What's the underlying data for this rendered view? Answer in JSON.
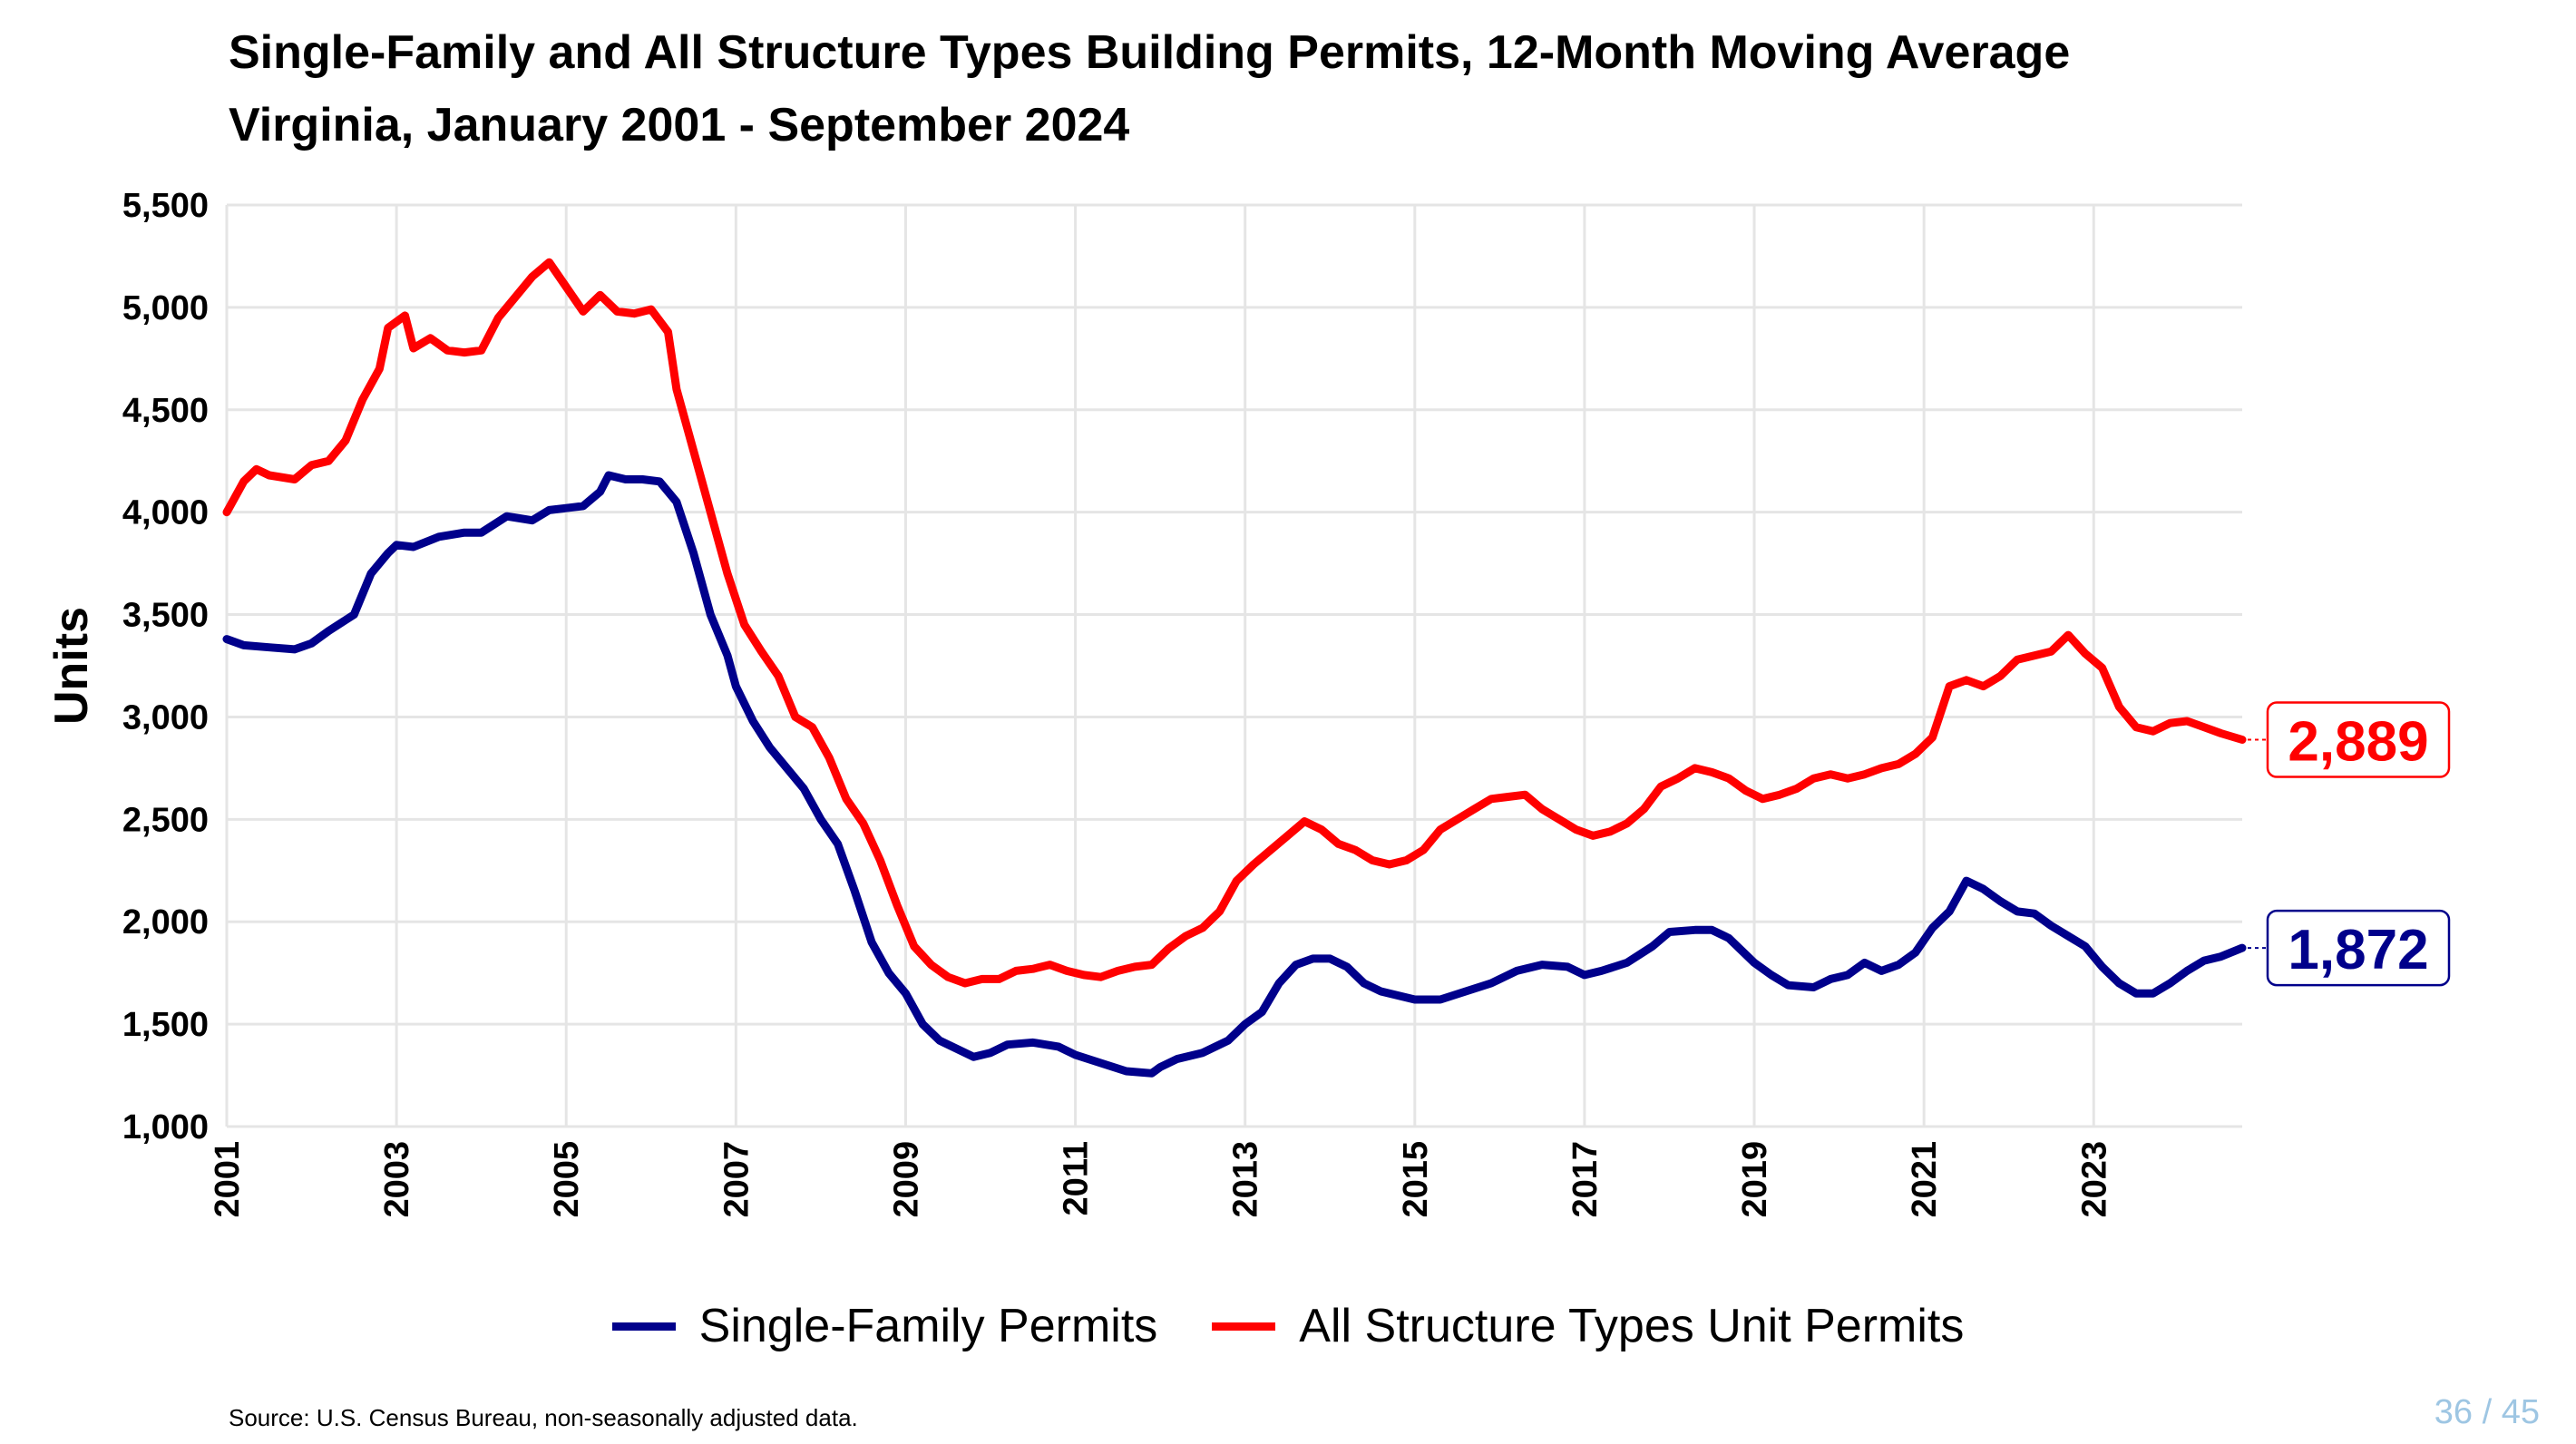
{
  "title_line1": "Single-Family and All Structure Types Building Permits, 12-Month Moving Average",
  "title_line2": "Virginia, January 2001 - September 2024",
  "source": "Source: U.S. Census Bureau, non-seasonally adjusted data.",
  "page": {
    "current": "36",
    "separator": "/",
    "total": "45"
  },
  "colors": {
    "single_family": "#00008b",
    "all_types": "#ff0000",
    "grid": "#e5e5e5"
  },
  "chart_data": {
    "type": "line",
    "title": "Single-Family and All Structure Types Building Permits, 12-Month Moving Average",
    "subtitle": "Virginia, January 2001 - September 2024",
    "xlabel": "",
    "ylabel": "Units",
    "xlim": [
      2001.0,
      2024.75
    ],
    "ylim": [
      1000,
      5500
    ],
    "x_ticks": [
      "2001",
      "2003",
      "2005",
      "2007",
      "2009",
      "2011",
      "2013",
      "2015",
      "2017",
      "2019",
      "2021",
      "2023"
    ],
    "y_ticks": [
      "1,000",
      "1,500",
      "2,000",
      "2,500",
      "3,000",
      "3,500",
      "4,000",
      "4,500",
      "5,000",
      "5,500"
    ],
    "grid": true,
    "legend_position": "bottom",
    "series": [
      {
        "name": "Single-Family Permits",
        "color": "#00008b",
        "end_label": "1,872",
        "points": [
          [
            2001.0,
            3380
          ],
          [
            2001.2,
            3350
          ],
          [
            2001.5,
            3340
          ],
          [
            2001.8,
            3330
          ],
          [
            2002.0,
            3360
          ],
          [
            2002.2,
            3420
          ],
          [
            2002.5,
            3500
          ],
          [
            2002.7,
            3700
          ],
          [
            2002.9,
            3800
          ],
          [
            2003.0,
            3840
          ],
          [
            2003.2,
            3830
          ],
          [
            2003.5,
            3880
          ],
          [
            2003.8,
            3900
          ],
          [
            2004.0,
            3900
          ],
          [
            2004.3,
            3980
          ],
          [
            2004.6,
            3960
          ],
          [
            2004.8,
            4010
          ],
          [
            2005.0,
            4020
          ],
          [
            2005.2,
            4030
          ],
          [
            2005.4,
            4100
          ],
          [
            2005.5,
            4180
          ],
          [
            2005.7,
            4160
          ],
          [
            2005.9,
            4160
          ],
          [
            2006.1,
            4150
          ],
          [
            2006.3,
            4050
          ],
          [
            2006.5,
            3800
          ],
          [
            2006.7,
            3500
          ],
          [
            2006.9,
            3300
          ],
          [
            2007.0,
            3150
          ],
          [
            2007.2,
            2980
          ],
          [
            2007.4,
            2850
          ],
          [
            2007.6,
            2750
          ],
          [
            2007.8,
            2650
          ],
          [
            2008.0,
            2500
          ],
          [
            2008.2,
            2380
          ],
          [
            2008.4,
            2150
          ],
          [
            2008.6,
            1900
          ],
          [
            2008.8,
            1750
          ],
          [
            2009.0,
            1650
          ],
          [
            2009.2,
            1500
          ],
          [
            2009.4,
            1420
          ],
          [
            2009.6,
            1380
          ],
          [
            2009.8,
            1340
          ],
          [
            2010.0,
            1360
          ],
          [
            2010.2,
            1400
          ],
          [
            2010.5,
            1410
          ],
          [
            2010.8,
            1390
          ],
          [
            2011.0,
            1350
          ],
          [
            2011.3,
            1310
          ],
          [
            2011.6,
            1270
          ],
          [
            2011.9,
            1260
          ],
          [
            2012.0,
            1290
          ],
          [
            2012.2,
            1330
          ],
          [
            2012.5,
            1360
          ],
          [
            2012.8,
            1420
          ],
          [
            2013.0,
            1500
          ],
          [
            2013.2,
            1560
          ],
          [
            2013.4,
            1700
          ],
          [
            2013.6,
            1790
          ],
          [
            2013.8,
            1820
          ],
          [
            2014.0,
            1820
          ],
          [
            2014.2,
            1780
          ],
          [
            2014.4,
            1700
          ],
          [
            2014.6,
            1660
          ],
          [
            2014.8,
            1640
          ],
          [
            2015.0,
            1620
          ],
          [
            2015.3,
            1620
          ],
          [
            2015.6,
            1660
          ],
          [
            2015.9,
            1700
          ],
          [
            2016.2,
            1760
          ],
          [
            2016.5,
            1790
          ],
          [
            2016.8,
            1780
          ],
          [
            2017.0,
            1740
          ],
          [
            2017.2,
            1760
          ],
          [
            2017.5,
            1800
          ],
          [
            2017.8,
            1880
          ],
          [
            2018.0,
            1950
          ],
          [
            2018.3,
            1960
          ],
          [
            2018.5,
            1960
          ],
          [
            2018.7,
            1920
          ],
          [
            2019.0,
            1800
          ],
          [
            2019.2,
            1740
          ],
          [
            2019.4,
            1690
          ],
          [
            2019.7,
            1680
          ],
          [
            2019.9,
            1720
          ],
          [
            2020.1,
            1740
          ],
          [
            2020.3,
            1800
          ],
          [
            2020.5,
            1760
          ],
          [
            2020.7,
            1790
          ],
          [
            2020.9,
            1850
          ],
          [
            2021.1,
            1970
          ],
          [
            2021.3,
            2050
          ],
          [
            2021.5,
            2200
          ],
          [
            2021.7,
            2160
          ],
          [
            2021.9,
            2100
          ],
          [
            2022.1,
            2050
          ],
          [
            2022.3,
            2040
          ],
          [
            2022.5,
            1980
          ],
          [
            2022.7,
            1930
          ],
          [
            2022.9,
            1880
          ],
          [
            2023.1,
            1780
          ],
          [
            2023.3,
            1700
          ],
          [
            2023.5,
            1650
          ],
          [
            2023.7,
            1650
          ],
          [
            2023.9,
            1700
          ],
          [
            2024.1,
            1760
          ],
          [
            2024.3,
            1810
          ],
          [
            2024.5,
            1830
          ],
          [
            2024.75,
            1872
          ]
        ]
      },
      {
        "name": "All Structure Types Unit Permits",
        "color": "#ff0000",
        "end_label": "2,889",
        "points": [
          [
            2001.0,
            4000
          ],
          [
            2001.2,
            4150
          ],
          [
            2001.35,
            4210
          ],
          [
            2001.5,
            4180
          ],
          [
            2001.8,
            4160
          ],
          [
            2002.0,
            4230
          ],
          [
            2002.2,
            4250
          ],
          [
            2002.4,
            4350
          ],
          [
            2002.6,
            4550
          ],
          [
            2002.8,
            4700
          ],
          [
            2002.9,
            4900
          ],
          [
            2003.1,
            4960
          ],
          [
            2003.2,
            4800
          ],
          [
            2003.4,
            4850
          ],
          [
            2003.6,
            4790
          ],
          [
            2003.8,
            4780
          ],
          [
            2004.0,
            4790
          ],
          [
            2004.2,
            4950
          ],
          [
            2004.4,
            5050
          ],
          [
            2004.6,
            5150
          ],
          [
            2004.8,
            5220
          ],
          [
            2005.0,
            5100
          ],
          [
            2005.2,
            4980
          ],
          [
            2005.4,
            5060
          ],
          [
            2005.6,
            4980
          ],
          [
            2005.8,
            4970
          ],
          [
            2006.0,
            4990
          ],
          [
            2006.2,
            4880
          ],
          [
            2006.3,
            4600
          ],
          [
            2006.5,
            4300
          ],
          [
            2006.7,
            4000
          ],
          [
            2006.9,
            3700
          ],
          [
            2007.1,
            3450
          ],
          [
            2007.3,
            3320
          ],
          [
            2007.5,
            3200
          ],
          [
            2007.7,
            3000
          ],
          [
            2007.9,
            2950
          ],
          [
            2008.1,
            2800
          ],
          [
            2008.3,
            2600
          ],
          [
            2008.5,
            2480
          ],
          [
            2008.7,
            2300
          ],
          [
            2008.9,
            2080
          ],
          [
            2009.1,
            1880
          ],
          [
            2009.3,
            1790
          ],
          [
            2009.5,
            1730
          ],
          [
            2009.7,
            1700
          ],
          [
            2009.9,
            1720
          ],
          [
            2010.1,
            1720
          ],
          [
            2010.3,
            1760
          ],
          [
            2010.5,
            1770
          ],
          [
            2010.7,
            1790
          ],
          [
            2010.9,
            1760
          ],
          [
            2011.1,
            1740
          ],
          [
            2011.3,
            1730
          ],
          [
            2011.5,
            1760
          ],
          [
            2011.7,
            1780
          ],
          [
            2011.9,
            1790
          ],
          [
            2012.1,
            1870
          ],
          [
            2012.3,
            1930
          ],
          [
            2012.5,
            1970
          ],
          [
            2012.7,
            2050
          ],
          [
            2012.9,
            2200
          ],
          [
            2013.1,
            2280
          ],
          [
            2013.3,
            2350
          ],
          [
            2013.5,
            2420
          ],
          [
            2013.7,
            2490
          ],
          [
            2013.9,
            2450
          ],
          [
            2014.1,
            2380
          ],
          [
            2014.3,
            2350
          ],
          [
            2014.5,
            2300
          ],
          [
            2014.7,
            2280
          ],
          [
            2014.9,
            2300
          ],
          [
            2015.1,
            2350
          ],
          [
            2015.3,
            2450
          ],
          [
            2015.5,
            2500
          ],
          [
            2015.7,
            2550
          ],
          [
            2015.9,
            2600
          ],
          [
            2016.1,
            2610
          ],
          [
            2016.3,
            2620
          ],
          [
            2016.5,
            2550
          ],
          [
            2016.7,
            2500
          ],
          [
            2016.9,
            2450
          ],
          [
            2017.1,
            2420
          ],
          [
            2017.3,
            2440
          ],
          [
            2017.5,
            2480
          ],
          [
            2017.7,
            2550
          ],
          [
            2017.9,
            2660
          ],
          [
            2018.1,
            2700
          ],
          [
            2018.3,
            2750
          ],
          [
            2018.5,
            2730
          ],
          [
            2018.7,
            2700
          ],
          [
            2018.9,
            2640
          ],
          [
            2019.1,
            2600
          ],
          [
            2019.3,
            2620
          ],
          [
            2019.5,
            2650
          ],
          [
            2019.7,
            2700
          ],
          [
            2019.9,
            2720
          ],
          [
            2020.1,
            2700
          ],
          [
            2020.3,
            2720
          ],
          [
            2020.5,
            2750
          ],
          [
            2020.7,
            2770
          ],
          [
            2020.9,
            2820
          ],
          [
            2021.1,
            2900
          ],
          [
            2021.3,
            3150
          ],
          [
            2021.5,
            3180
          ],
          [
            2021.7,
            3150
          ],
          [
            2021.9,
            3200
          ],
          [
            2022.1,
            3280
          ],
          [
            2022.3,
            3300
          ],
          [
            2022.5,
            3320
          ],
          [
            2022.7,
            3400
          ],
          [
            2022.9,
            3310
          ],
          [
            2023.1,
            3240
          ],
          [
            2023.3,
            3050
          ],
          [
            2023.5,
            2950
          ],
          [
            2023.7,
            2930
          ],
          [
            2023.9,
            2970
          ],
          [
            2024.1,
            2980
          ],
          [
            2024.3,
            2950
          ],
          [
            2024.5,
            2920
          ],
          [
            2024.75,
            2889
          ]
        ]
      }
    ]
  }
}
